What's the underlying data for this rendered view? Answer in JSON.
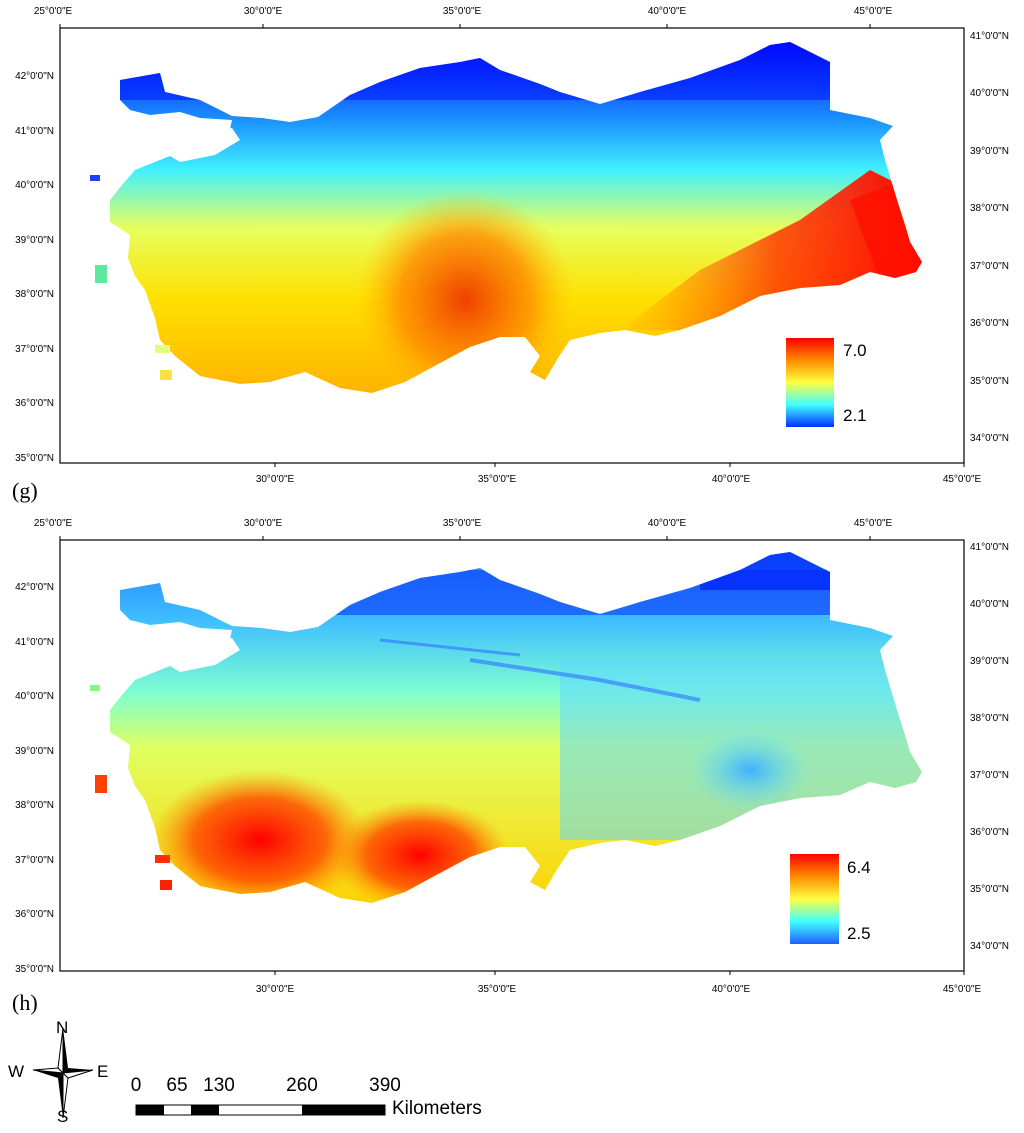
{
  "panels": [
    {
      "label": "(g)",
      "legend": {
        "max": "7.0",
        "min": "2.1",
        "colors": [
          "#ff0000",
          "#ff8c00",
          "#ffff40",
          "#40ffff",
          "#0040ff"
        ]
      },
      "top_ticks": [
        "25°0'0\"E",
        "30°0'0\"E",
        "35°0'0\"E",
        "40°0'0\"E",
        "45°0'0\"E"
      ],
      "bottom_ticks": [
        "30°0'0\"E",
        "35°0'0\"E",
        "40°0'0\"E",
        "45°0'0\"E"
      ],
      "left_ticks": [
        "42°0'0\"N",
        "41°0'0\"N",
        "40°0'0\"N",
        "39°0'0\"N",
        "38°0'0\"N",
        "37°0'0\"N",
        "36°0'0\"N",
        "35°0'0\"N"
      ],
      "right_ticks": [
        "41°0'0\"N",
        "40°0'0\"N",
        "39°0'0\"N",
        "38°0'0\"N",
        "37°0'0\"N",
        "36°0'0\"N",
        "35°0'0\"N",
        "34°0'0\"N"
      ]
    },
    {
      "label": "(h)",
      "legend": {
        "max": "6.4",
        "min": "2.5",
        "colors": [
          "#ff0000",
          "#ff8c00",
          "#ffff40",
          "#40ffff",
          "#2060ff"
        ]
      },
      "top_ticks": [
        "25°0'0\"E",
        "30°0'0\"E",
        "35°0'0\"E",
        "40°0'0\"E",
        "45°0'0\"E"
      ],
      "bottom_ticks": [
        "30°0'0\"E",
        "35°0'0\"E",
        "40°0'0\"E",
        "45°0'0\"E"
      ],
      "left_ticks": [
        "42°0'0\"N",
        "41°0'0\"N",
        "40°0'0\"N",
        "39°0'0\"N",
        "38°0'0\"N",
        "37°0'0\"N",
        "36°0'0\"N",
        "35°0'0\"N"
      ],
      "right_ticks": [
        "41°0'0\"N",
        "40°0'0\"N",
        "39°0'0\"N",
        "38°0'0\"N",
        "37°0'0\"N",
        "36°0'0\"N",
        "35°0'0\"N",
        "34°0'0\"N"
      ]
    }
  ],
  "compass": {
    "n": "N",
    "s": "S",
    "e": "E",
    "w": "W"
  },
  "scalebar": {
    "labels": [
      "0",
      "65",
      "130",
      "260",
      "390"
    ],
    "unit": "Kilometers"
  }
}
